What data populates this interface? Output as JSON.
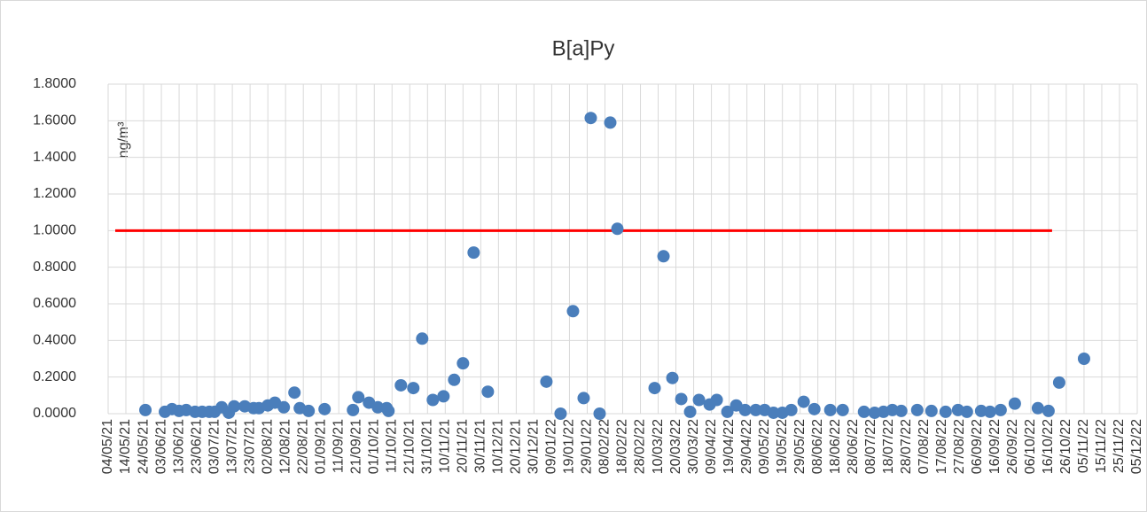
{
  "chart_data": {
    "type": "scatter",
    "title": "B[a]Py",
    "y_label": "ng/m³",
    "color": "#4a7ebb",
    "grid": true,
    "ylim": [
      0,
      1.8
    ],
    "yticks": [
      {
        "value": 0,
        "label": "0.0000"
      },
      {
        "value": 0.2,
        "label": "0.2000"
      },
      {
        "value": 0.4,
        "label": "0.4000"
      },
      {
        "value": 0.6,
        "label": "0.6000"
      },
      {
        "value": 0.8,
        "label": "0.8000"
      },
      {
        "value": 1.0,
        "label": "1.0000"
      },
      {
        "value": 1.2,
        "label": "1.2000"
      },
      {
        "value": 1.4,
        "label": "1.4000"
      },
      {
        "value": 1.6,
        "label": "1.6000"
      },
      {
        "value": 1.8,
        "label": "1.8000"
      }
    ],
    "xlim": [
      "2021-05-04",
      "2022-12-05"
    ],
    "xticks": [
      {
        "value": "2021-05-04",
        "label": "04/05/21"
      },
      {
        "value": "2021-05-14",
        "label": "14/05/21"
      },
      {
        "value": "2021-05-24",
        "label": "24/05/21"
      },
      {
        "value": "2021-06-03",
        "label": "03/06/21"
      },
      {
        "value": "2021-06-13",
        "label": "13/06/21"
      },
      {
        "value": "2021-06-23",
        "label": "23/06/21"
      },
      {
        "value": "2021-07-03",
        "label": "03/07/21"
      },
      {
        "value": "2021-07-13",
        "label": "13/07/21"
      },
      {
        "value": "2021-07-23",
        "label": "23/07/21"
      },
      {
        "value": "2021-08-02",
        "label": "02/08/21"
      },
      {
        "value": "2021-08-12",
        "label": "12/08/21"
      },
      {
        "value": "2021-08-22",
        "label": "22/08/21"
      },
      {
        "value": "2021-09-01",
        "label": "01/09/21"
      },
      {
        "value": "2021-09-11",
        "label": "11/09/21"
      },
      {
        "value": "2021-09-21",
        "label": "21/09/21"
      },
      {
        "value": "2021-10-01",
        "label": "01/10/21"
      },
      {
        "value": "2021-10-11",
        "label": "11/10/21"
      },
      {
        "value": "2021-10-21",
        "label": "21/10/21"
      },
      {
        "value": "2021-10-31",
        "label": "31/10/21"
      },
      {
        "value": "2021-11-10",
        "label": "10/11/21"
      },
      {
        "value": "2021-11-20",
        "label": "20/11/21"
      },
      {
        "value": "2021-11-30",
        "label": "30/11/21"
      },
      {
        "value": "2021-12-10",
        "label": "10/12/21"
      },
      {
        "value": "2021-12-20",
        "label": "20/12/21"
      },
      {
        "value": "2021-12-30",
        "label": "30/12/21"
      },
      {
        "value": "2022-01-09",
        "label": "09/01/22"
      },
      {
        "value": "2022-01-19",
        "label": "19/01/22"
      },
      {
        "value": "2022-01-29",
        "label": "29/01/22"
      },
      {
        "value": "2022-02-08",
        "label": "08/02/22"
      },
      {
        "value": "2022-02-18",
        "label": "18/02/22"
      },
      {
        "value": "2022-02-28",
        "label": "28/02/22"
      },
      {
        "value": "2022-03-10",
        "label": "10/03/22"
      },
      {
        "value": "2022-03-20",
        "label": "20/03/22"
      },
      {
        "value": "2022-03-30",
        "label": "30/03/22"
      },
      {
        "value": "2022-04-09",
        "label": "09/04/22"
      },
      {
        "value": "2022-04-19",
        "label": "19/04/22"
      },
      {
        "value": "2022-04-29",
        "label": "29/04/22"
      },
      {
        "value": "2022-05-09",
        "label": "09/05/22"
      },
      {
        "value": "2022-05-19",
        "label": "19/05/22"
      },
      {
        "value": "2022-05-29",
        "label": "29/05/22"
      },
      {
        "value": "2022-06-08",
        "label": "08/06/22"
      },
      {
        "value": "2022-06-18",
        "label": "18/06/22"
      },
      {
        "value": "2022-06-28",
        "label": "28/06/22"
      },
      {
        "value": "2022-07-08",
        "label": "08/07/22"
      },
      {
        "value": "2022-07-18",
        "label": "18/07/22"
      },
      {
        "value": "2022-07-28",
        "label": "28/07/22"
      },
      {
        "value": "2022-08-07",
        "label": "07/08/22"
      },
      {
        "value": "2022-08-17",
        "label": "17/08/22"
      },
      {
        "value": "2022-08-27",
        "label": "27/08/22"
      },
      {
        "value": "2022-09-06",
        "label": "06/09/22"
      },
      {
        "value": "2022-09-16",
        "label": "16/09/22"
      },
      {
        "value": "2022-09-26",
        "label": "26/09/22"
      },
      {
        "value": "2022-10-06",
        "label": "06/10/22"
      },
      {
        "value": "2022-10-16",
        "label": "16/10/22"
      },
      {
        "value": "2022-10-26",
        "label": "26/10/22"
      },
      {
        "value": "2022-11-05",
        "label": "05/11/22"
      },
      {
        "value": "2022-11-15",
        "label": "15/11/22"
      },
      {
        "value": "2022-11-25",
        "label": "25/11/22"
      },
      {
        "value": "2022-12-05",
        "label": "05/12/22"
      }
    ],
    "x": [
      "2021-05-25",
      "2021-06-05",
      "2021-06-09",
      "2021-06-13",
      "2021-06-17",
      "2021-06-22",
      "2021-06-26",
      "2021-06-30",
      "2021-07-03",
      "2021-07-07",
      "2021-07-11",
      "2021-07-14",
      "2021-07-20",
      "2021-07-25",
      "2021-07-28",
      "2021-08-02",
      "2021-08-06",
      "2021-08-11",
      "2021-08-17",
      "2021-08-20",
      "2021-08-25",
      "2021-09-03",
      "2021-09-19",
      "2021-09-22",
      "2021-09-28",
      "2021-10-03",
      "2021-10-08",
      "2021-10-09",
      "2021-10-16",
      "2021-10-23",
      "2021-10-28",
      "2021-11-03",
      "2021-11-09",
      "2021-11-15",
      "2021-11-20",
      "2021-11-26",
      "2021-12-04",
      "2022-01-06",
      "2022-01-14",
      "2022-01-21",
      "2022-01-27",
      "2022-01-31",
      "2022-02-05",
      "2022-02-11",
      "2022-02-15",
      "2022-03-08",
      "2022-03-13",
      "2022-03-18",
      "2022-03-23",
      "2022-03-28",
      "2022-04-02",
      "2022-04-08",
      "2022-04-12",
      "2022-04-18",
      "2022-04-23",
      "2022-04-28",
      "2022-05-04",
      "2022-05-09",
      "2022-05-14",
      "2022-05-19",
      "2022-05-24",
      "2022-05-31",
      "2022-06-06",
      "2022-06-15",
      "2022-06-22",
      "2022-07-04",
      "2022-07-10",
      "2022-07-15",
      "2022-07-20",
      "2022-07-25",
      "2022-08-03",
      "2022-08-11",
      "2022-08-19",
      "2022-08-26",
      "2022-08-31",
      "2022-09-08",
      "2022-09-13",
      "2022-09-19",
      "2022-09-27",
      "2022-10-10",
      "2022-10-16",
      "2022-10-22",
      "2022-11-05"
    ],
    "values": [
      0.02,
      0.01,
      0.025,
      0.015,
      0.02,
      0.01,
      0.01,
      0.01,
      0.01,
      0.035,
      0.005,
      0.04,
      0.04,
      0.03,
      0.03,
      0.045,
      0.06,
      0.035,
      0.115,
      0.03,
      0.015,
      0.025,
      0.02,
      0.09,
      0.06,
      0.035,
      0.03,
      0.015,
      0.155,
      0.14,
      0.41,
      0.075,
      0.095,
      0.185,
      0.275,
      0.88,
      0.12,
      0.175,
      0.0,
      0.56,
      0.085,
      1.615,
      0.0,
      1.59,
      1.01,
      0.14,
      0.86,
      0.195,
      0.08,
      0.01,
      0.075,
      0.05,
      0.075,
      0.01,
      0.045,
      0.02,
      0.02,
      0.02,
      0.005,
      0.005,
      0.02,
      0.065,
      0.025,
      0.02,
      0.02,
      0.01,
      0.005,
      0.01,
      0.02,
      0.015,
      0.02,
      0.015,
      0.01,
      0.02,
      0.01,
      0.015,
      0.01,
      0.02,
      0.055,
      0.03,
      0.015,
      0.17,
      0.3
    ],
    "limit_line": {
      "x": [
        "2021-05-08",
        "2022-10-18"
      ],
      "values": [
        1.0,
        1.0
      ],
      "color": "#ff0000"
    }
  }
}
